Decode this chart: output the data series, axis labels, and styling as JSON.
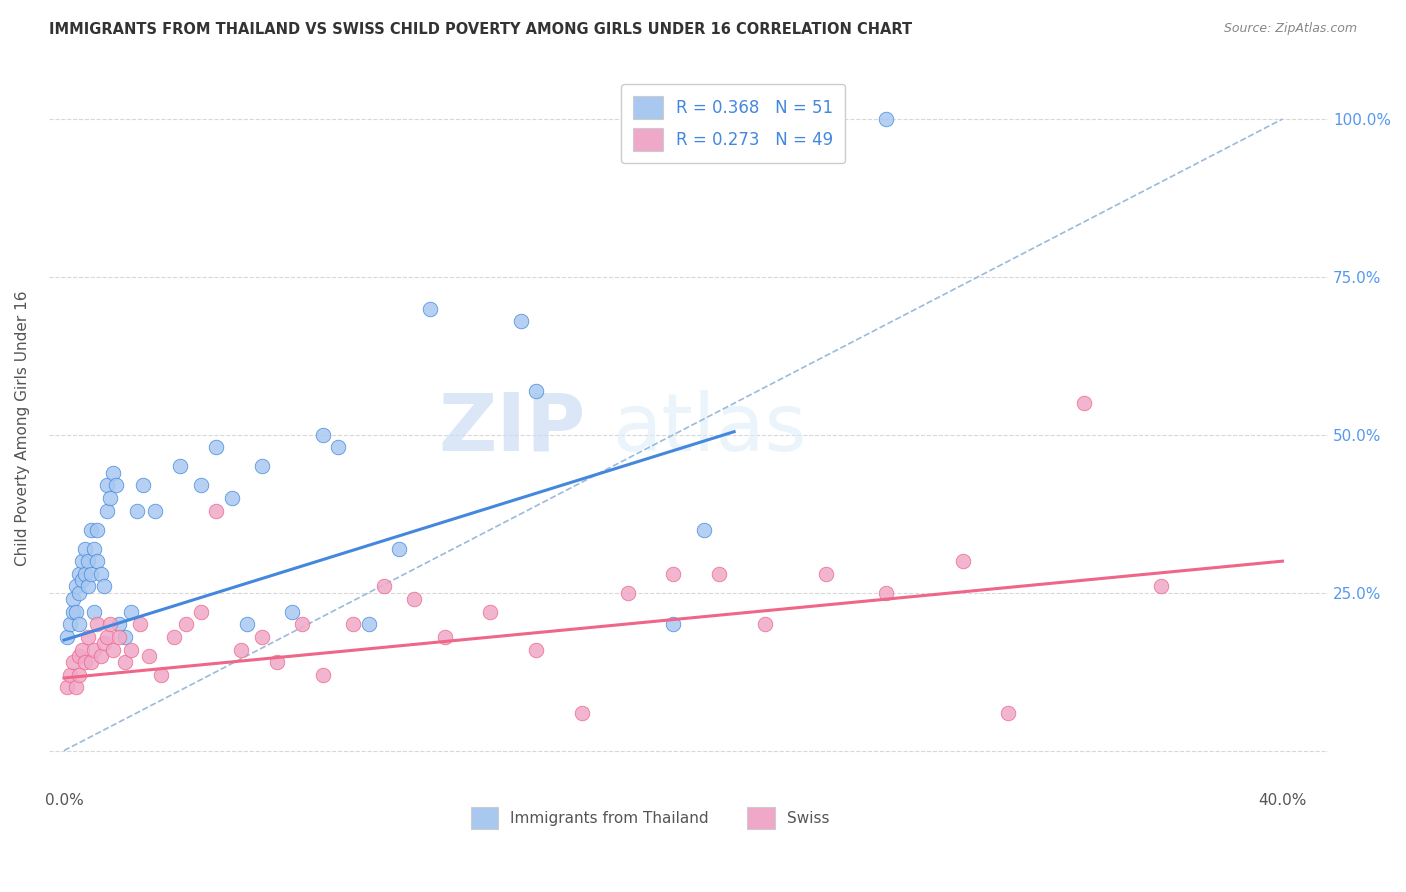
{
  "title": "IMMIGRANTS FROM THAILAND VS SWISS CHILD POVERTY AMONG GIRLS UNDER 16 CORRELATION CHART",
  "source": "Source: ZipAtlas.com",
  "ylabel": "Child Poverty Among Girls Under 16",
  "x_ticks": [
    0.0,
    0.05,
    0.1,
    0.15,
    0.2,
    0.25,
    0.3,
    0.35,
    0.4
  ],
  "x_tick_labels": [
    "0.0%",
    "",
    "",
    "",
    "",
    "",
    "",
    "",
    "40.0%"
  ],
  "y_ticks": [
    0.0,
    0.25,
    0.5,
    0.75,
    1.0
  ],
  "y_tick_labels_right": [
    "",
    "25.0%",
    "50.0%",
    "75.0%",
    "100.0%"
  ],
  "xlim": [
    -0.005,
    0.415
  ],
  "ylim": [
    -0.06,
    1.08
  ],
  "blue_scatter_x": [
    0.001,
    0.002,
    0.003,
    0.003,
    0.004,
    0.004,
    0.005,
    0.005,
    0.005,
    0.006,
    0.006,
    0.007,
    0.007,
    0.008,
    0.008,
    0.009,
    0.009,
    0.01,
    0.01,
    0.011,
    0.011,
    0.012,
    0.013,
    0.014,
    0.014,
    0.015,
    0.016,
    0.017,
    0.018,
    0.02,
    0.022,
    0.024,
    0.026,
    0.03,
    0.038,
    0.045,
    0.05,
    0.055,
    0.06,
    0.065,
    0.075,
    0.085,
    0.09,
    0.1,
    0.11,
    0.12,
    0.15,
    0.155,
    0.2,
    0.21,
    0.27
  ],
  "blue_scatter_y": [
    0.18,
    0.2,
    0.22,
    0.24,
    0.26,
    0.22,
    0.28,
    0.25,
    0.2,
    0.3,
    0.27,
    0.32,
    0.28,
    0.3,
    0.26,
    0.35,
    0.28,
    0.22,
    0.32,
    0.35,
    0.3,
    0.28,
    0.26,
    0.38,
    0.42,
    0.4,
    0.44,
    0.42,
    0.2,
    0.18,
    0.22,
    0.38,
    0.42,
    0.38,
    0.45,
    0.42,
    0.48,
    0.4,
    0.2,
    0.45,
    0.22,
    0.5,
    0.48,
    0.2,
    0.32,
    0.7,
    0.68,
    0.57,
    0.2,
    0.35,
    1.0
  ],
  "pink_scatter_x": [
    0.001,
    0.002,
    0.003,
    0.004,
    0.005,
    0.005,
    0.006,
    0.007,
    0.008,
    0.009,
    0.01,
    0.011,
    0.012,
    0.013,
    0.014,
    0.015,
    0.016,
    0.018,
    0.02,
    0.022,
    0.025,
    0.028,
    0.032,
    0.036,
    0.04,
    0.045,
    0.05,
    0.058,
    0.065,
    0.07,
    0.078,
    0.085,
    0.095,
    0.105,
    0.115,
    0.125,
    0.14,
    0.155,
    0.17,
    0.185,
    0.2,
    0.215,
    0.23,
    0.25,
    0.27,
    0.295,
    0.31,
    0.335,
    0.36
  ],
  "pink_scatter_y": [
    0.1,
    0.12,
    0.14,
    0.1,
    0.15,
    0.12,
    0.16,
    0.14,
    0.18,
    0.14,
    0.16,
    0.2,
    0.15,
    0.17,
    0.18,
    0.2,
    0.16,
    0.18,
    0.14,
    0.16,
    0.2,
    0.15,
    0.12,
    0.18,
    0.2,
    0.22,
    0.38,
    0.16,
    0.18,
    0.14,
    0.2,
    0.12,
    0.2,
    0.26,
    0.24,
    0.18,
    0.22,
    0.16,
    0.06,
    0.25,
    0.28,
    0.28,
    0.2,
    0.28,
    0.25,
    0.3,
    0.06,
    0.55,
    0.26
  ],
  "blue_line_x": [
    0.0,
    0.22
  ],
  "blue_line_y": [
    0.175,
    0.505
  ],
  "pink_line_x": [
    0.0,
    0.4
  ],
  "pink_line_y": [
    0.115,
    0.3
  ],
  "dash_line_x": [
    0.0,
    0.4
  ],
  "dash_line_y": [
    0.0,
    1.0
  ],
  "bg_color": "#ffffff",
  "scatter_blue_color": "#a8c8f0",
  "scatter_pink_color": "#f0a8c8",
  "line_blue_color": "#4488dd",
  "line_pink_color": "#ee6688",
  "dash_color": "#99bbdd",
  "grid_color": "#d8d8d8",
  "title_color": "#333333",
  "right_tick_color": "#5599ee",
  "ylabel_color": "#555555",
  "watermark_color": "#ddeeff",
  "watermark": "ZIPatlas"
}
